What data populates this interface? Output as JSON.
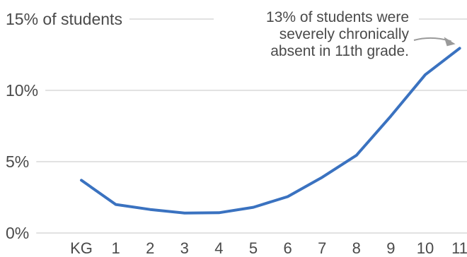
{
  "chart_data": {
    "type": "line",
    "categories": [
      "KG",
      "1",
      "2",
      "3",
      "4",
      "5",
      "6",
      "7",
      "8",
      "9",
      "10",
      "11"
    ],
    "series": [
      {
        "values": [
          3.7,
          2.0,
          1.65,
          1.4,
          1.42,
          1.8,
          2.55,
          3.9,
          5.45,
          8.2,
          11.1,
          12.95
        ]
      }
    ],
    "ylim": [
      0,
      15
    ],
    "y_ticks": [
      {
        "value": 0,
        "label": "0%"
      },
      {
        "value": 5,
        "label": "5%"
      },
      {
        "value": 10,
        "label": "10%"
      },
      {
        "value": 15,
        "label": "15% of students"
      }
    ],
    "grid": true,
    "annotation": {
      "lines": [
        "13% of students were",
        "severely chronically",
        "absent in 11th grade."
      ],
      "target_category": "11"
    },
    "colors": {
      "line": "#3a72c0",
      "grid": "#d9d9d9",
      "text": "#4a4a4a",
      "arrow": "#9a9a9a"
    }
  }
}
